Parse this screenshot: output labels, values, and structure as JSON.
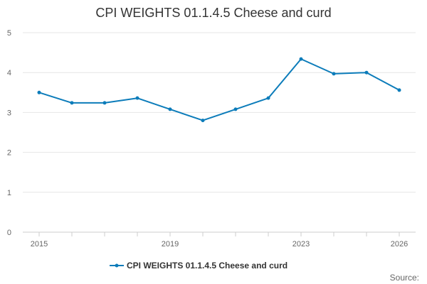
{
  "chart_data": {
    "type": "line",
    "title": "CPI WEIGHTS 01.1.4.5 Cheese and curd",
    "xlabel": "",
    "ylabel": "",
    "x": [
      2015,
      2016,
      2017,
      2018,
      2019,
      2020,
      2021,
      2022,
      2023,
      2024,
      2025,
      2026
    ],
    "x_tick_labels": [
      "2015",
      "2019",
      "2023",
      "2026"
    ],
    "y_tick_labels": [
      "0",
      "1",
      "2",
      "3",
      "4",
      "5"
    ],
    "xlim": [
      2015,
      2026
    ],
    "ylim": [
      0,
      5
    ],
    "grid": true,
    "legend_position": "bottom",
    "series": [
      {
        "name": "CPI WEIGHTS 01.1.4.5 Cheese and curd",
        "color": "#0c7cba",
        "values": [
          3.5,
          3.24,
          3.24,
          3.36,
          3.08,
          2.8,
          3.08,
          3.36,
          4.34,
          3.97,
          4.0,
          3.56
        ]
      }
    ],
    "source_label": "Source:"
  },
  "colors": {
    "grid": "#e6e6e6",
    "axis": "#cccccc",
    "series": "#0c7cba"
  }
}
